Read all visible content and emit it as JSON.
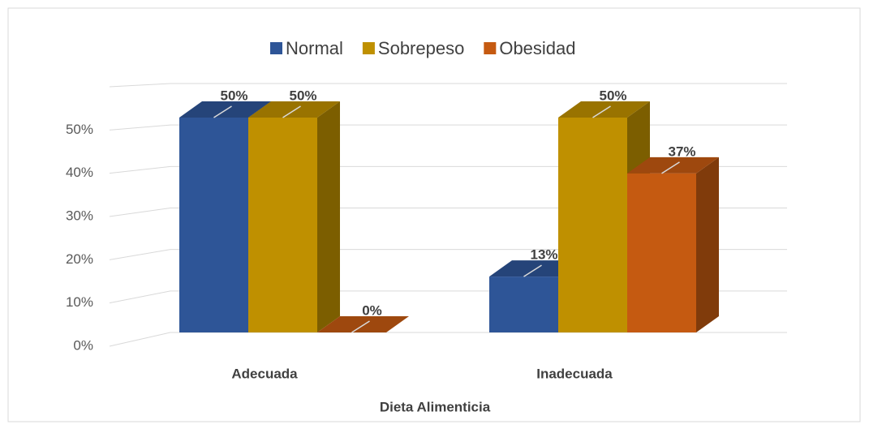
{
  "chart_data": {
    "type": "bar3d",
    "x_axis_label": "Dieta Alimenticia",
    "categories": [
      "Adecuada",
      "Inadecuada"
    ],
    "series": [
      {
        "name": "Normal",
        "color": "#2e5597",
        "values": [
          50,
          13
        ],
        "value_labels": [
          "50%",
          "13%"
        ]
      },
      {
        "name": "Sobrepeso",
        "color": "#bf9000",
        "values": [
          50,
          50
        ],
        "value_labels": [
          "50%",
          "50%"
        ]
      },
      {
        "name": "Obesidad",
        "color": "#c55a11",
        "values": [
          0,
          37
        ],
        "value_labels": [
          "0%",
          "37%"
        ]
      }
    ],
    "ylim": [
      0,
      60
    ],
    "yticks": [
      {
        "value": 0,
        "label": "0%"
      },
      {
        "value": 10,
        "label": "10%"
      },
      {
        "value": 20,
        "label": "20%"
      },
      {
        "value": 30,
        "label": "30%"
      },
      {
        "value": 40,
        "label": "40%"
      },
      {
        "value": 50,
        "label": "50%"
      }
    ],
    "grid": true,
    "legend": "top"
  }
}
